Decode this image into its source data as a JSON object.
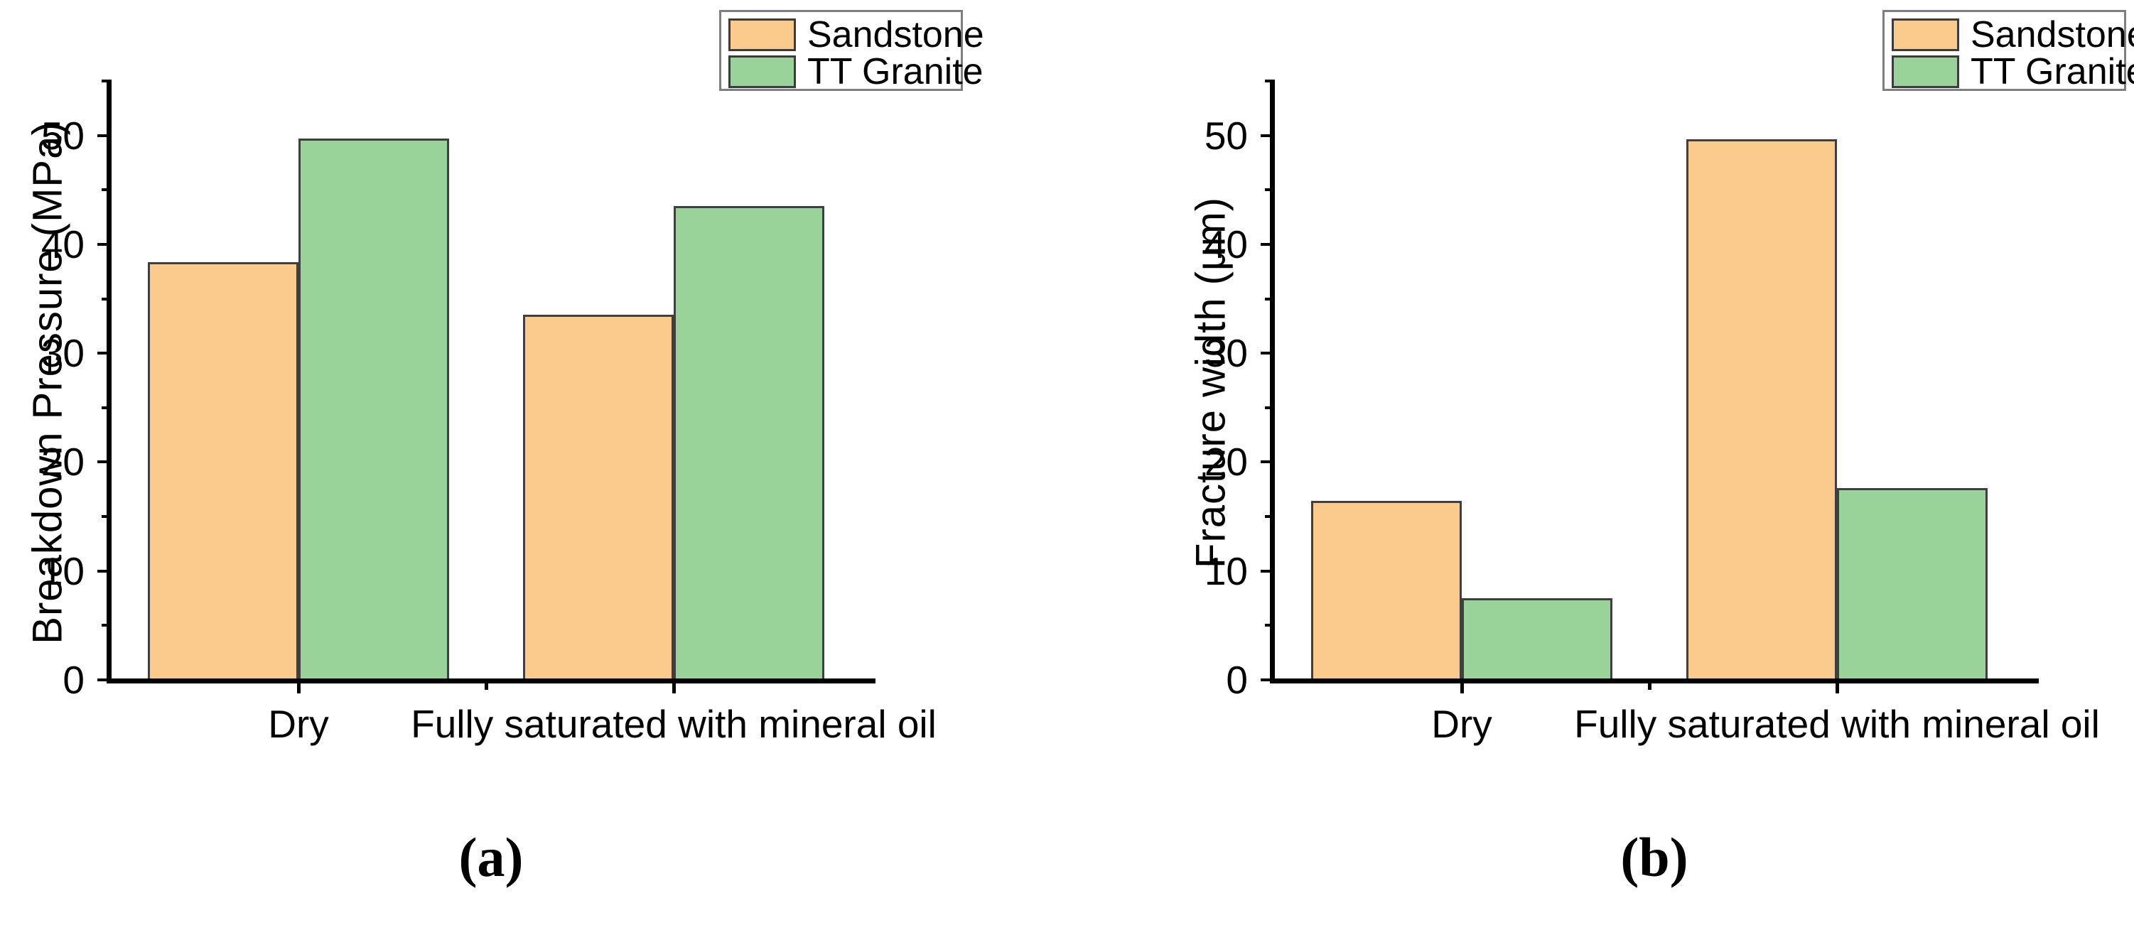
{
  "page": {
    "background": "#ffffff"
  },
  "colors": {
    "sandstone_fill": "#FBCA8D",
    "granite_fill": "#9AD39A",
    "bar_border": "#3f3f3f",
    "axis": "#000000",
    "legend_border": "#7f7f7f"
  },
  "chart_data": [
    {
      "id": "a",
      "type": "bar",
      "panel_label": "(a)",
      "ylabel": "Breakdown Pressure (MPa)",
      "xlabel": "",
      "categories": [
        "Dry",
        "Fully saturated with mineral oil"
      ],
      "yticks": [
        0,
        10,
        20,
        30,
        40,
        50
      ],
      "minor_yticks": [
        5,
        15,
        25,
        35,
        45,
        55
      ],
      "ylim": [
        0,
        55
      ],
      "grid": "off",
      "legend_position": "top-right",
      "series": [
        {
          "name": "Sandstone",
          "color": "#FBCA8D",
          "values": [
            38.2,
            33.4
          ]
        },
        {
          "name": "TT Granite",
          "color": "#9AD39A",
          "values": [
            49.6,
            43.4
          ]
        }
      ]
    },
    {
      "id": "b",
      "type": "bar",
      "panel_label": "(b)",
      "ylabel": "Fracture width (μm)",
      "xlabel": "",
      "categories": [
        "Dry",
        "Fully saturated with mineral oil"
      ],
      "yticks": [
        0,
        10,
        20,
        30,
        40,
        50
      ],
      "minor_yticks": [
        5,
        15,
        25,
        35,
        45,
        55
      ],
      "ylim": [
        0,
        55
      ],
      "grid": "off",
      "legend_position": "top-right",
      "series": [
        {
          "name": "Sandstone",
          "color": "#FBCA8D",
          "values": [
            16.3,
            49.5
          ]
        },
        {
          "name": "TT Granite",
          "color": "#9AD39A",
          "values": [
            7.4,
            17.5
          ]
        }
      ]
    }
  ]
}
